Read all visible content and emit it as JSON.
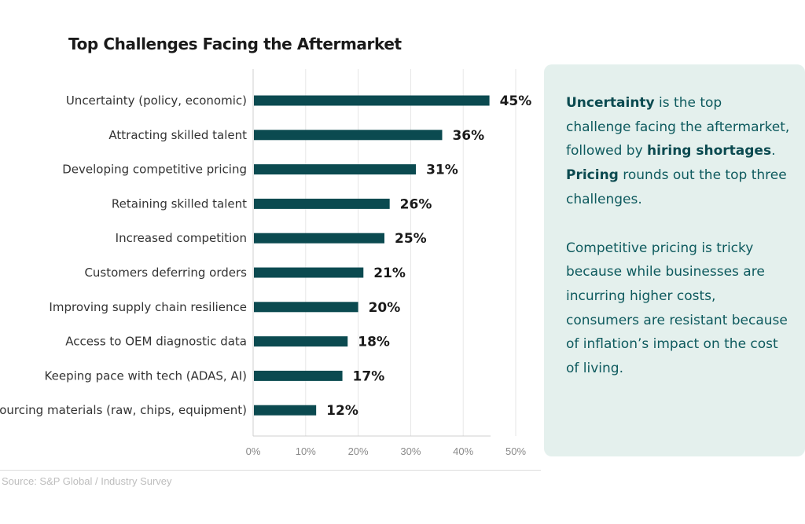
{
  "colors": {
    "bar": "#0b4a50",
    "grid": "#e6e6e6",
    "axis": "#cfcfcf",
    "panel_background": "#e4f0ed",
    "panel_text": "#0e5a5e"
  },
  "chart_data": {
    "type": "bar",
    "orientation": "horizontal",
    "title": "Top Challenges Facing the Aftermarket",
    "categories": [
      "Uncertainty (policy, economic)",
      "Attracting skilled talent",
      "Developing competitive pricing",
      "Retaining skilled talent",
      "Increased competition",
      "Customers deferring orders",
      "Improving supply chain resilience",
      "Access to OEM diagnostic data",
      "Keeping pace with tech (ADAS, AI)",
      "Sourcing materials (raw, chips, equipment)"
    ],
    "values": [
      45,
      36,
      31,
      26,
      25,
      21,
      20,
      18,
      17,
      12
    ],
    "value_labels": [
      "45%",
      "36%",
      "31%",
      "26%",
      "25%",
      "21%",
      "20%",
      "18%",
      "17%",
      "12%"
    ],
    "xlim": [
      0,
      50
    ],
    "x_ticks": [
      0,
      10,
      20,
      30,
      40,
      50
    ],
    "x_tick_labels": [
      "0%",
      "10%",
      "20%",
      "30%",
      "40%",
      "50%"
    ],
    "grid": true,
    "legend": false
  },
  "insight": {
    "p1": [
      {
        "text": "Uncertainty",
        "bold": true
      },
      {
        "text": " is the top challenge facing the aftermarket, followed by ",
        "bold": false
      },
      {
        "text": "hiring shortages",
        "bold": true
      },
      {
        "text": ". ",
        "bold": false
      },
      {
        "text": "Pricing",
        "bold": true
      },
      {
        "text": " rounds out the top three challenges.",
        "bold": false
      }
    ],
    "p2": "Competitive pricing is tricky because while businesses are incurring higher costs, consumers are resistant because of inflation’s impact on the cost of living."
  },
  "source": "Source: S&P Global / Industry Survey"
}
